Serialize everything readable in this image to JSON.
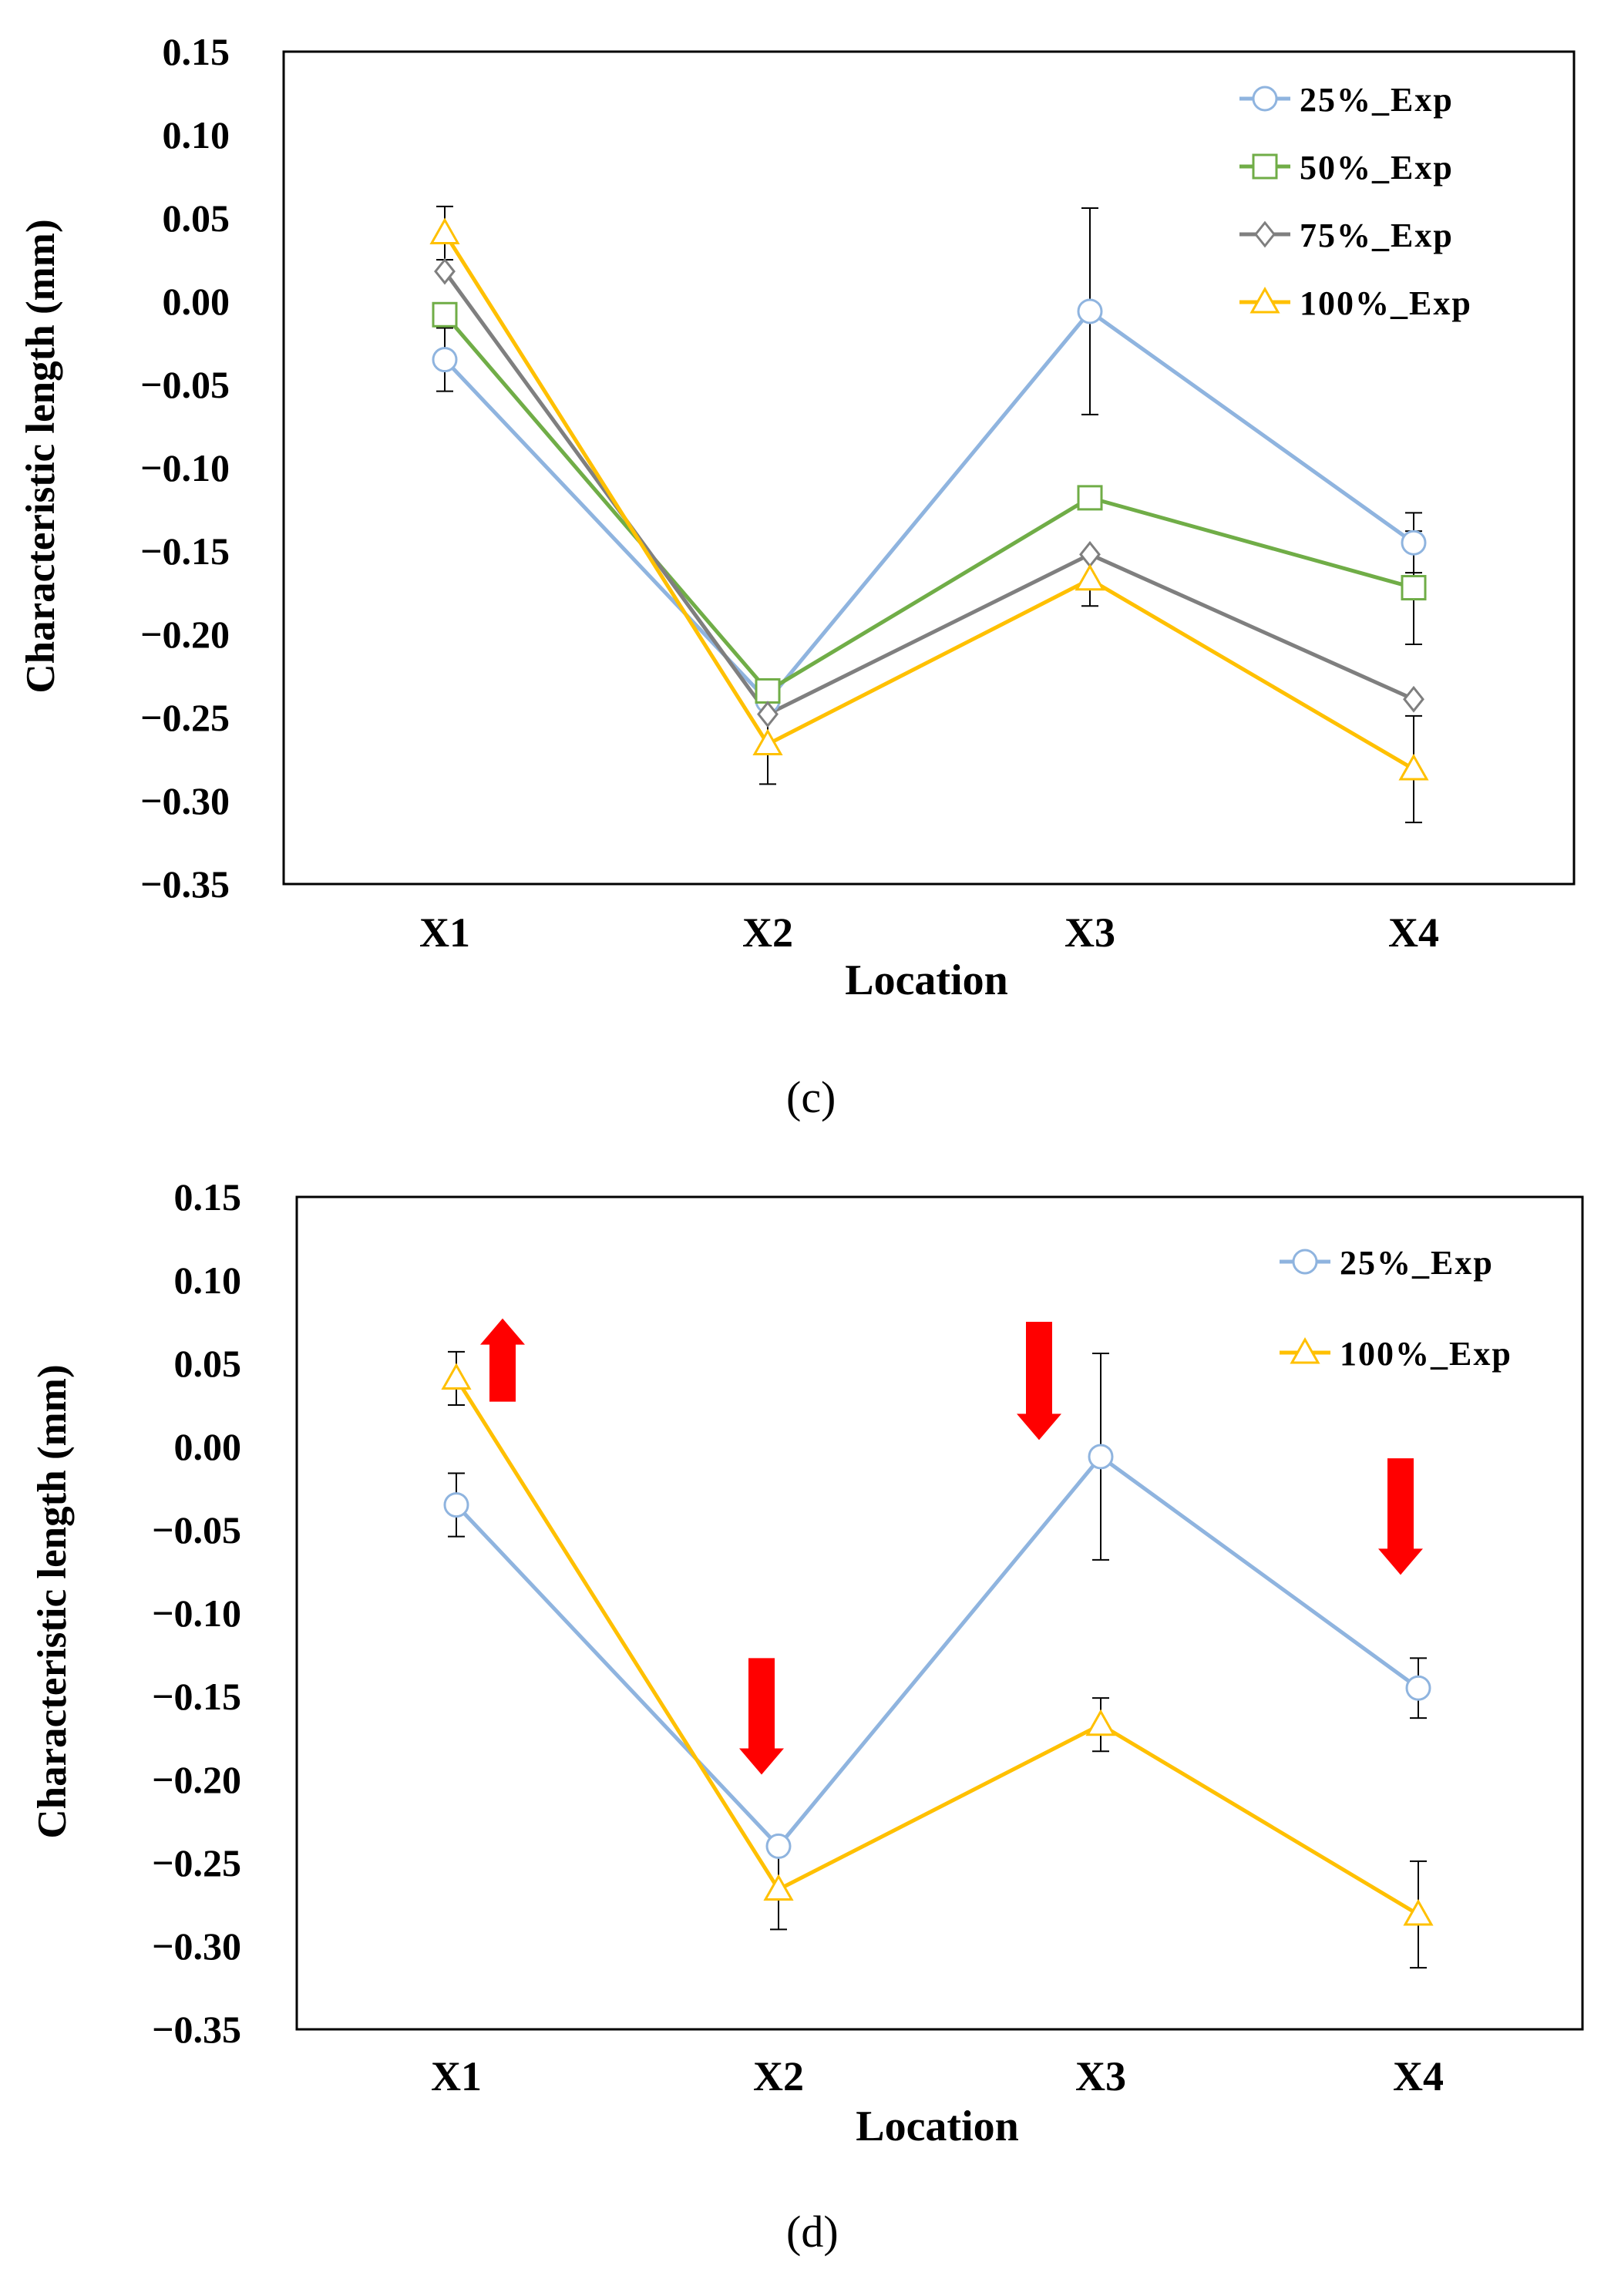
{
  "chart_data": [
    {
      "type": "line",
      "panel": "c",
      "panel_label": "(c)",
      "xlabel": "Location",
      "ylabel": "Characteristic length (mm)",
      "categories": [
        "X1",
        "X2",
        "X3",
        "X4"
      ],
      "ylim": [
        -0.35,
        0.15
      ],
      "yticks": [
        0.15,
        0.1,
        0.05,
        0.0,
        -0.05,
        -0.1,
        -0.15,
        -0.2,
        -0.25,
        -0.3,
        -0.35
      ],
      "ytick_labels": [
        "0.15",
        "0.10",
        "0.05",
        "0.00",
        "−0.05",
        "−0.10",
        "−0.15",
        "−0.20",
        "−0.25",
        "−0.30",
        "−0.35"
      ],
      "grid": false,
      "legend_position": "top-right",
      "series": [
        {
          "name": "25%_Exp",
          "color": "#8fb4df",
          "marker": "circle",
          "values": [
            -0.035,
            -0.24,
            -0.006,
            -0.145
          ],
          "error": [
            0.019,
            0.0,
            0.062,
            0.018
          ]
        },
        {
          "name": "50%_Exp",
          "color": "#70ad47",
          "marker": "square",
          "values": [
            -0.008,
            -0.234,
            -0.118,
            -0.172
          ],
          "error": [
            0.0,
            0.0,
            0.0,
            0.034
          ]
        },
        {
          "name": "75%_Exp",
          "color": "#7f7f7f",
          "marker": "diamond",
          "values": [
            0.018,
            -0.248,
            -0.152,
            -0.239
          ],
          "error": [
            0.0,
            0.0,
            0.0,
            0.0
          ]
        },
        {
          "name": "100%_Exp",
          "color": "#ffc000",
          "marker": "triangle",
          "values": [
            0.041,
            -0.266,
            -0.167,
            -0.281
          ],
          "error": [
            0.016,
            0.024,
            0.016,
            0.032
          ]
        }
      ]
    },
    {
      "type": "line",
      "panel": "d",
      "panel_label": "(d)",
      "xlabel": "Location",
      "ylabel": "Characteristic length (mm)",
      "categories": [
        "X1",
        "X2",
        "X3",
        "X4"
      ],
      "ylim": [
        -0.35,
        0.15
      ],
      "yticks": [
        0.15,
        0.1,
        0.05,
        0.0,
        -0.05,
        -0.1,
        -0.15,
        -0.2,
        -0.25,
        -0.3,
        -0.35
      ],
      "ytick_labels": [
        "0.15",
        "0.10",
        "0.05",
        "0.00",
        "−0.05",
        "−0.10",
        "−0.15",
        "−0.20",
        "−0.25",
        "−0.30",
        "−0.35"
      ],
      "grid": false,
      "legend_position": "top-right",
      "series": [
        {
          "name": "25%_Exp",
          "color": "#8fb4df",
          "marker": "circle",
          "values": [
            -0.035,
            -0.24,
            -0.006,
            -0.145
          ],
          "error": [
            0.019,
            0.0,
            0.062,
            0.018
          ]
        },
        {
          "name": "100%_Exp",
          "color": "#ffc000",
          "marker": "triangle",
          "values": [
            0.041,
            -0.266,
            -0.167,
            -0.281
          ],
          "error": [
            0.016,
            0.024,
            0.016,
            0.032
          ]
        }
      ],
      "annotations": [
        {
          "type": "arrow",
          "direction": "up",
          "color": "#ff0000",
          "category": "X1",
          "from": 0.027,
          "to": 0.077
        },
        {
          "type": "arrow",
          "direction": "down",
          "color": "#ff0000",
          "category": "X2",
          "from": -0.127,
          "to": -0.197
        },
        {
          "type": "arrow",
          "direction": "down",
          "color": "#ff0000",
          "category": "X3",
          "from": 0.075,
          "to": 0.004
        },
        {
          "type": "arrow",
          "direction": "down",
          "color": "#ff0000",
          "category": "X4",
          "from": -0.007,
          "to": -0.077
        }
      ]
    }
  ]
}
